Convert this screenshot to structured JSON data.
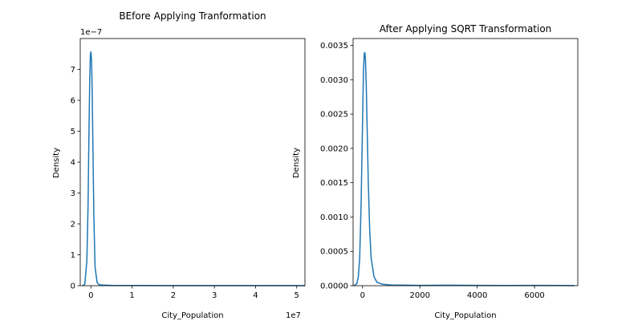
{
  "chart_data": [
    {
      "type": "line",
      "title": "BEfore Applying Tranformation",
      "xlabel": "City_Population",
      "ylabel": "Density",
      "x_offset_label": "1e7",
      "y_offset_label": "1e−7",
      "xlim": [
        -0.26,
        5.2
      ],
      "ylim": [
        0,
        8
      ],
      "xticks": [
        0,
        1,
        2,
        3,
        4,
        5
      ],
      "xtick_labels": [
        "0",
        "1",
        "2",
        "3",
        "4",
        "5"
      ],
      "yticks": [
        0,
        1,
        2,
        3,
        4,
        5,
        6,
        7
      ],
      "ytick_labels": [
        "0",
        "1",
        "2",
        "3",
        "4",
        "5",
        "6",
        "7"
      ],
      "grid": false,
      "color": "#1f77b4",
      "series": [
        {
          "x": [
            -0.2,
            -0.15,
            -0.1,
            -0.07,
            -0.05,
            -0.03,
            -0.015,
            0.0,
            0.015,
            0.03,
            0.05,
            0.07,
            0.1,
            0.15,
            0.2,
            0.3,
            0.5,
            1.0,
            2.0,
            3.0,
            4.0,
            5.0,
            5.2
          ],
          "y": [
            0.0,
            0.05,
            0.8,
            2.6,
            4.8,
            6.6,
            7.45,
            7.58,
            7.3,
            6.3,
            4.3,
            2.3,
            0.6,
            0.1,
            0.03,
            0.02,
            0.01,
            0.005,
            0.003,
            0.003,
            0.002,
            0.002,
            0.0
          ]
        }
      ]
    },
    {
      "type": "line",
      "title": "After Applying SQRT Transformation",
      "xlabel": "City_Population",
      "ylabel": "Density",
      "xlim": [
        -330,
        7510
      ],
      "ylim": [
        0,
        0.0036
      ],
      "xticks": [
        0,
        2000,
        4000,
        6000
      ],
      "xtick_labels": [
        "0",
        "2000",
        "4000",
        "6000"
      ],
      "yticks": [
        0,
        0.0005,
        0.001,
        0.0015,
        0.002,
        0.0025,
        0.003,
        0.0035
      ],
      "ytick_labels": [
        "0.0000",
        "0.0005",
        "0.0010",
        "0.0015",
        "0.0020",
        "0.0025",
        "0.0030",
        "0.0035"
      ],
      "grid": false,
      "color": "#1f77b4",
      "series": [
        {
          "x": [
            -300,
            -200,
            -150,
            -100,
            -50,
            0,
            30,
            60,
            80,
            100,
            130,
            160,
            200,
            250,
            300,
            400,
            500,
            700,
            1000,
            2000,
            3000,
            4000,
            5000,
            6000,
            7000,
            7400
          ],
          "y": [
            0.0,
            3e-05,
            0.00012,
            0.0004,
            0.0012,
            0.0024,
            0.0031,
            0.00338,
            0.0034,
            0.0033,
            0.0029,
            0.0023,
            0.0015,
            0.0008,
            0.0004,
            0.00013,
            5e-05,
            2e-05,
            1e-05,
            5e-06,
            8e-06,
            5e-06,
            3e-06,
            4e-06,
            3e-06,
            1e-06
          ]
        }
      ]
    }
  ]
}
